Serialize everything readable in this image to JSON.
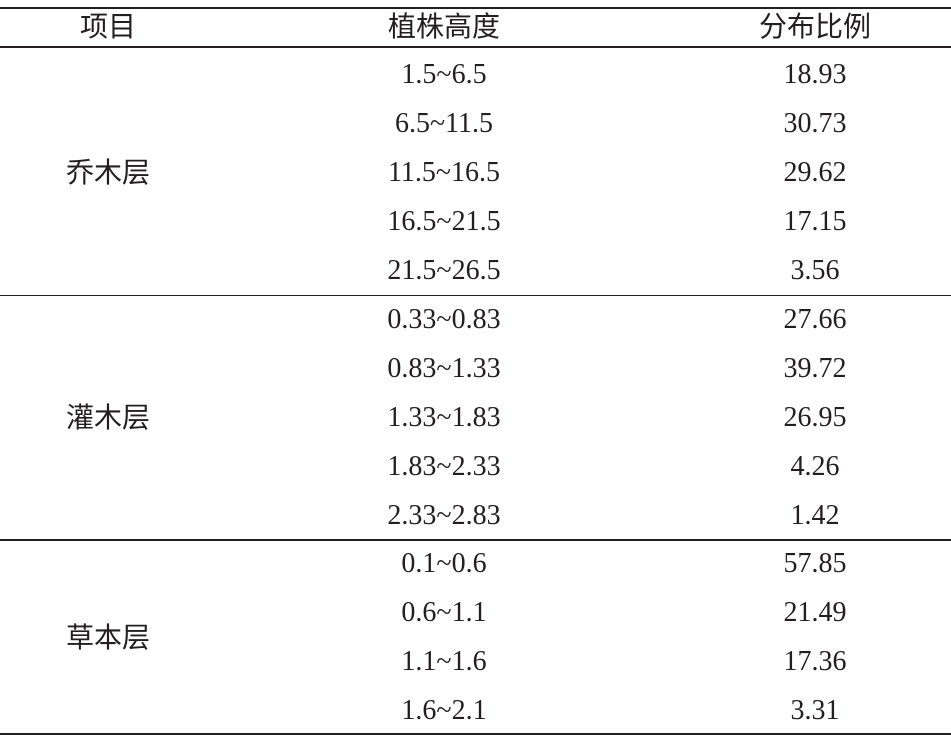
{
  "table": {
    "header": [
      "项目",
      "植株高度",
      "分布比例"
    ],
    "groups": [
      {
        "name": "乔木层",
        "rows": [
          [
            "1.5~6.5",
            "18.93"
          ],
          [
            "6.5~11.5",
            "30.73"
          ],
          [
            "11.5~16.5",
            "29.62"
          ],
          [
            "16.5~21.5",
            "17.15"
          ],
          [
            "21.5~26.5",
            "3.56"
          ]
        ]
      },
      {
        "name": "灌木层",
        "rows": [
          [
            "0.33~0.83",
            "27.66"
          ],
          [
            "0.83~1.33",
            "39.72"
          ],
          [
            "1.33~1.83",
            "26.95"
          ],
          [
            "1.83~2.33",
            "4.26"
          ],
          [
            "2.33~2.83",
            "1.42"
          ]
        ]
      },
      {
        "name": "草本层",
        "rows": [
          [
            "0.1~0.6",
            "57.85"
          ],
          [
            "0.6~1.1",
            "21.49"
          ],
          [
            "1.1~1.6",
            "17.36"
          ],
          [
            "1.6~2.1",
            "3.31"
          ]
        ]
      }
    ]
  }
}
